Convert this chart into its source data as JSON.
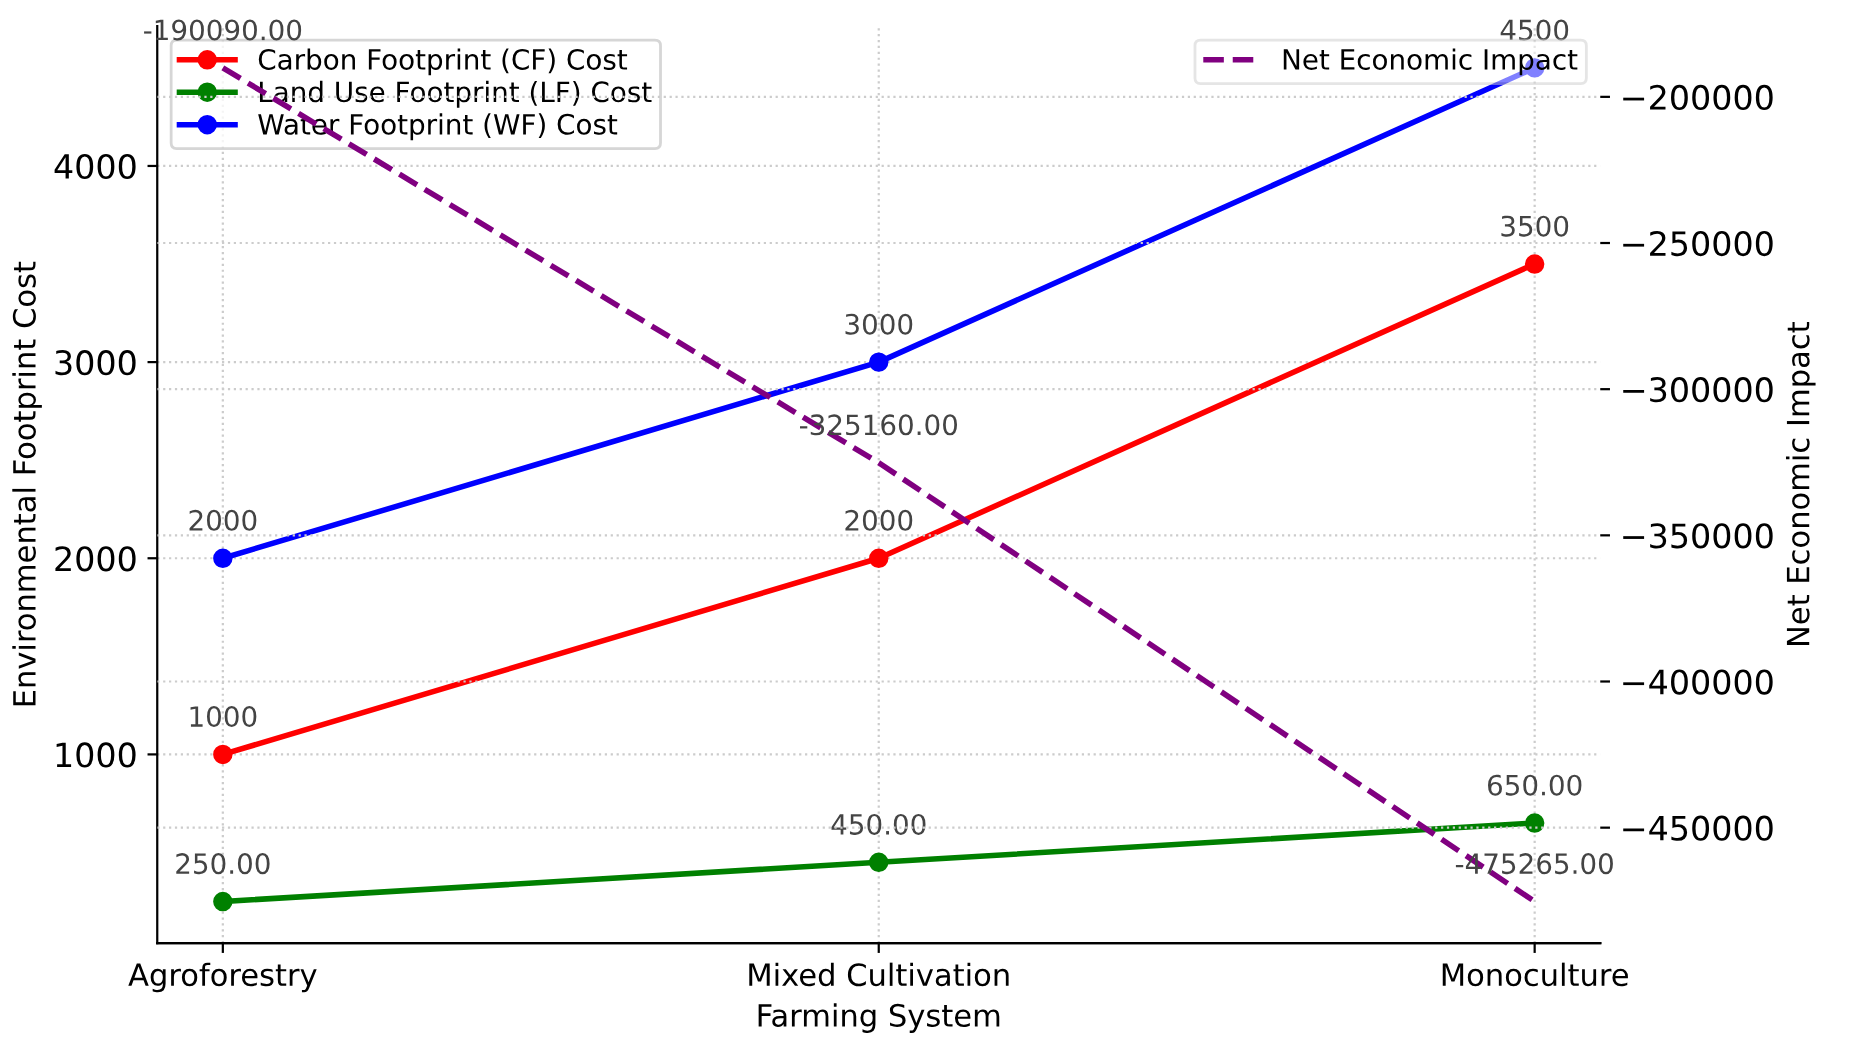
{
  "chart_data": {
    "type": "line",
    "xlabel": "Farming System",
    "ylabel": "Environmental Footprint Cost",
    "y2label": "Net Economic Impact",
    "categories": [
      "Agroforestry",
      "Mixed Cultivation",
      "Monoculture"
    ],
    "series": [
      {
        "name": "Carbon Footprint (CF) Cost",
        "color": "#ff0000",
        "values": [
          1000,
          2000,
          3500
        ],
        "value_labels": [
          "1000",
          "2000",
          "3500"
        ],
        "marker": "circle",
        "line_style": "solid"
      },
      {
        "name": "Land Use Footprint (LF) Cost",
        "color": "#008000",
        "values": [
          250,
          450,
          650
        ],
        "value_labels": [
          "250.00",
          "450.00",
          "650.00"
        ],
        "marker": "circle",
        "line_style": "solid"
      },
      {
        "name": "Water Footprint (WF) Cost",
        "color": "#0000ff",
        "values": [
          2000,
          3000,
          4500
        ],
        "value_labels": [
          "2000",
          "3000",
          "4500"
        ],
        "marker": "circle",
        "line_style": "solid"
      },
      {
        "name": "Net Economic Impact",
        "color": "#800080",
        "values": [
          -190090,
          -325160,
          -475265
        ],
        "value_labels": [
          "-190090.00",
          "-325160.00",
          "-475265.00"
        ],
        "axis": "y2",
        "marker": "none",
        "line_style": "dashed"
      }
    ],
    "ylim": [
      37.5,
      4712.5
    ],
    "yticks": [
      1000,
      2000,
      3000,
      4000
    ],
    "y2lim": [
      -489524,
      -175831
    ],
    "y2ticks": [
      -450000,
      -400000,
      -350000,
      -300000,
      -250000,
      -200000
    ],
    "grid": true,
    "legend": "top left"
  }
}
